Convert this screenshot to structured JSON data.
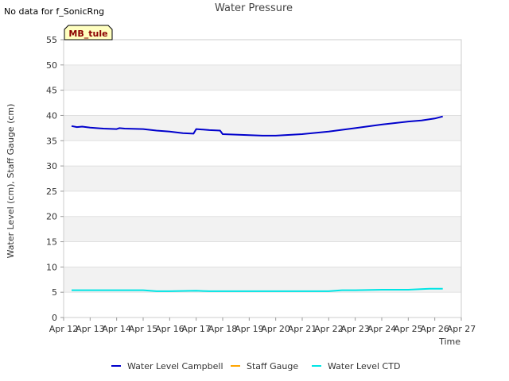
{
  "notice": "No data for f_SonicRng",
  "site_badge": "MB_tule",
  "colors": {
    "water_level_campbell": "#0000cc",
    "staff_gauge": "#ffa500",
    "water_level_ctd": "#00e5e5",
    "band": "#f2f2f2",
    "badge_bg": "#ffffc0",
    "badge_text": "#8b0000"
  },
  "chart_data": {
    "type": "line",
    "title": "Water Pressure",
    "xlabel": "Time",
    "ylabel": "Water Level (cm), Staff Gauge (cm)",
    "xlim": [
      12,
      27
    ],
    "ylim": [
      0,
      55
    ],
    "x_ticks": [
      {
        "v": 12,
        "label": "Apr 12"
      },
      {
        "v": 13,
        "label": "Apr 13"
      },
      {
        "v": 14,
        "label": "Apr 14"
      },
      {
        "v": 15,
        "label": "Apr 15"
      },
      {
        "v": 16,
        "label": "Apr 16"
      },
      {
        "v": 17,
        "label": "Apr 17"
      },
      {
        "v": 18,
        "label": "Apr 18"
      },
      {
        "v": 19,
        "label": "Apr 19"
      },
      {
        "v": 20,
        "label": "Apr 20"
      },
      {
        "v": 21,
        "label": "Apr 21"
      },
      {
        "v": 22,
        "label": "Apr 22"
      },
      {
        "v": 23,
        "label": "Apr 23"
      },
      {
        "v": 24,
        "label": "Apr 24"
      },
      {
        "v": 25,
        "label": "Apr 25"
      },
      {
        "v": 26,
        "label": "Apr 26"
      },
      {
        "v": 27,
        "label": "Apr 27"
      }
    ],
    "y_ticks": [
      {
        "v": 0,
        "label": "0"
      },
      {
        "v": 5,
        "label": "5"
      },
      {
        "v": 10,
        "label": "10"
      },
      {
        "v": 15,
        "label": "15"
      },
      {
        "v": 20,
        "label": "20"
      },
      {
        "v": 25,
        "label": "25"
      },
      {
        "v": 30,
        "label": "30"
      },
      {
        "v": 35,
        "label": "35"
      },
      {
        "v": 40,
        "label": "40"
      },
      {
        "v": 45,
        "label": "45"
      },
      {
        "v": 50,
        "label": "50"
      },
      {
        "v": 55,
        "label": "55"
      }
    ],
    "series": [
      {
        "name": "Water Level Campbell",
        "color": "#0000cc",
        "x": [
          12.3,
          12.5,
          12.7,
          13.0,
          13.5,
          14.0,
          14.1,
          14.3,
          15.0,
          15.5,
          16.0,
          16.5,
          16.9,
          17.0,
          17.5,
          17.9,
          18.0,
          18.5,
          19.0,
          19.5,
          20.0,
          21.0,
          22.0,
          23.0,
          24.0,
          25.0,
          25.5,
          26.0,
          26.3
        ],
        "values": [
          37.9,
          37.7,
          37.8,
          37.6,
          37.4,
          37.3,
          37.5,
          37.4,
          37.3,
          37.0,
          36.8,
          36.5,
          36.4,
          37.3,
          37.1,
          37.0,
          36.3,
          36.2,
          36.1,
          36.0,
          36.0,
          36.3,
          36.8,
          37.5,
          38.2,
          38.8,
          39.0,
          39.4,
          39.8
        ]
      },
      {
        "name": "Staff Gauge",
        "color": "#ffa500",
        "x": [],
        "values": []
      },
      {
        "name": "Water Level CTD",
        "color": "#00e5e5",
        "x": [
          12.3,
          13.0,
          14.0,
          15.0,
          15.5,
          16.0,
          17.0,
          17.5,
          18.0,
          19.0,
          20.0,
          21.0,
          22.0,
          22.5,
          23.0,
          24.0,
          25.0,
          25.8,
          26.3
        ],
        "values": [
          5.4,
          5.4,
          5.4,
          5.4,
          5.2,
          5.2,
          5.3,
          5.2,
          5.2,
          5.2,
          5.2,
          5.2,
          5.2,
          5.4,
          5.4,
          5.5,
          5.5,
          5.7,
          5.7
        ]
      }
    ],
    "legend": {
      "placement": "bottom-center",
      "entries": [
        "Water Level Campbell",
        "Staff Gauge",
        "Water Level CTD"
      ]
    }
  }
}
